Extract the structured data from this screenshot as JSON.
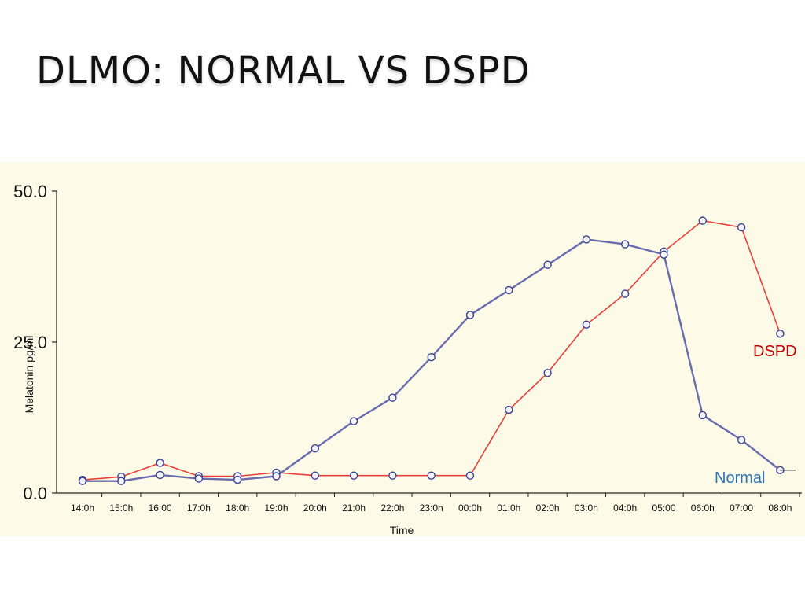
{
  "slide": {
    "title": "DLMO: NORMAL VS DSPD"
  },
  "colors": {
    "dspd": "#e8403a",
    "normal": "#6a6cae",
    "normal_label": "#2e74b5",
    "dspd_label": "#c00000",
    "marker_fill": "#f2f4fb",
    "marker_stroke": "#3d3f8f",
    "background": "#fdfbe8"
  },
  "chart_data": {
    "type": "line",
    "title": "",
    "xlabel": "Time",
    "ylabel": "Melatonin pg/ml",
    "ylim": [
      0,
      50
    ],
    "yticks": [
      0,
      25,
      50
    ],
    "ytick_labels": [
      "0.0",
      "25.0",
      "50.0"
    ],
    "grid": false,
    "categories": [
      "14:0h",
      "15:0h",
      "16:00",
      "17:0h",
      "18:0h",
      "19:0h",
      "20:0h",
      "21:0h",
      "22:0h",
      "23:0h",
      "00:0h",
      "01:0h",
      "02:0h",
      "03:0h",
      "04:0h",
      "05:00",
      "06:0h",
      "07:00",
      "08:0h"
    ],
    "series": [
      {
        "name": "DSPD",
        "color_key": "dspd",
        "values": [
          2.2,
          2.7,
          5.0,
          2.8,
          2.8,
          3.4,
          2.9,
          2.9,
          2.9,
          2.9,
          2.9,
          13.8,
          19.9,
          27.9,
          33.0,
          40.0,
          45.1,
          44.0,
          26.4
        ]
      },
      {
        "name": "Normal",
        "color_key": "normal",
        "values": [
          2.0,
          2.0,
          3.0,
          2.4,
          2.2,
          2.8,
          7.4,
          11.9,
          15.8,
          22.5,
          29.5,
          33.6,
          37.8,
          42.0,
          41.2,
          39.5,
          12.9,
          8.8,
          3.8
        ]
      }
    ]
  }
}
